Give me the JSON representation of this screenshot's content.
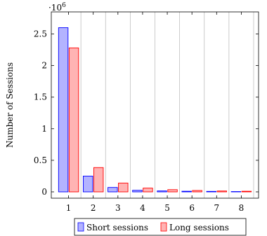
{
  "chart_data": {
    "type": "bar",
    "categories": [
      "1",
      "2",
      "3",
      "4",
      "5",
      "6",
      "7",
      "8"
    ],
    "series": [
      {
        "name": "Short sessions",
        "values": [
          2600000,
          250000,
          70000,
          25000,
          15000,
          10000,
          8000,
          5000
        ],
        "fill": "#b3b3ff",
        "stroke": "#0000ff"
      },
      {
        "name": "Long sessions",
        "values": [
          2280000,
          385000,
          140000,
          60000,
          35000,
          22000,
          14000,
          10000
        ],
        "fill": "#ffb3b3",
        "stroke": "#ff0000"
      }
    ],
    "ylabel": "Number of Sessions",
    "xlabel": "",
    "ylim": [
      -100000,
      2850000
    ],
    "xlim": [
      0.3,
      8.7
    ],
    "yticks": [
      0,
      500000,
      1000000,
      1500000,
      2000000,
      2500000
    ],
    "ytick_labels": [
      "0",
      "0.5",
      "1",
      "1.5",
      "2",
      "2.5"
    ],
    "xticks": [
      1,
      2,
      3,
      4,
      5,
      6,
      7,
      8
    ],
    "xtick_labels": [
      "1",
      "2",
      "3",
      "4",
      "5",
      "6",
      "7",
      "8"
    ],
    "y_scale_label": "·10",
    "y_scale_exponent": "6",
    "grid": "vertical",
    "legend_position": "bottom"
  }
}
